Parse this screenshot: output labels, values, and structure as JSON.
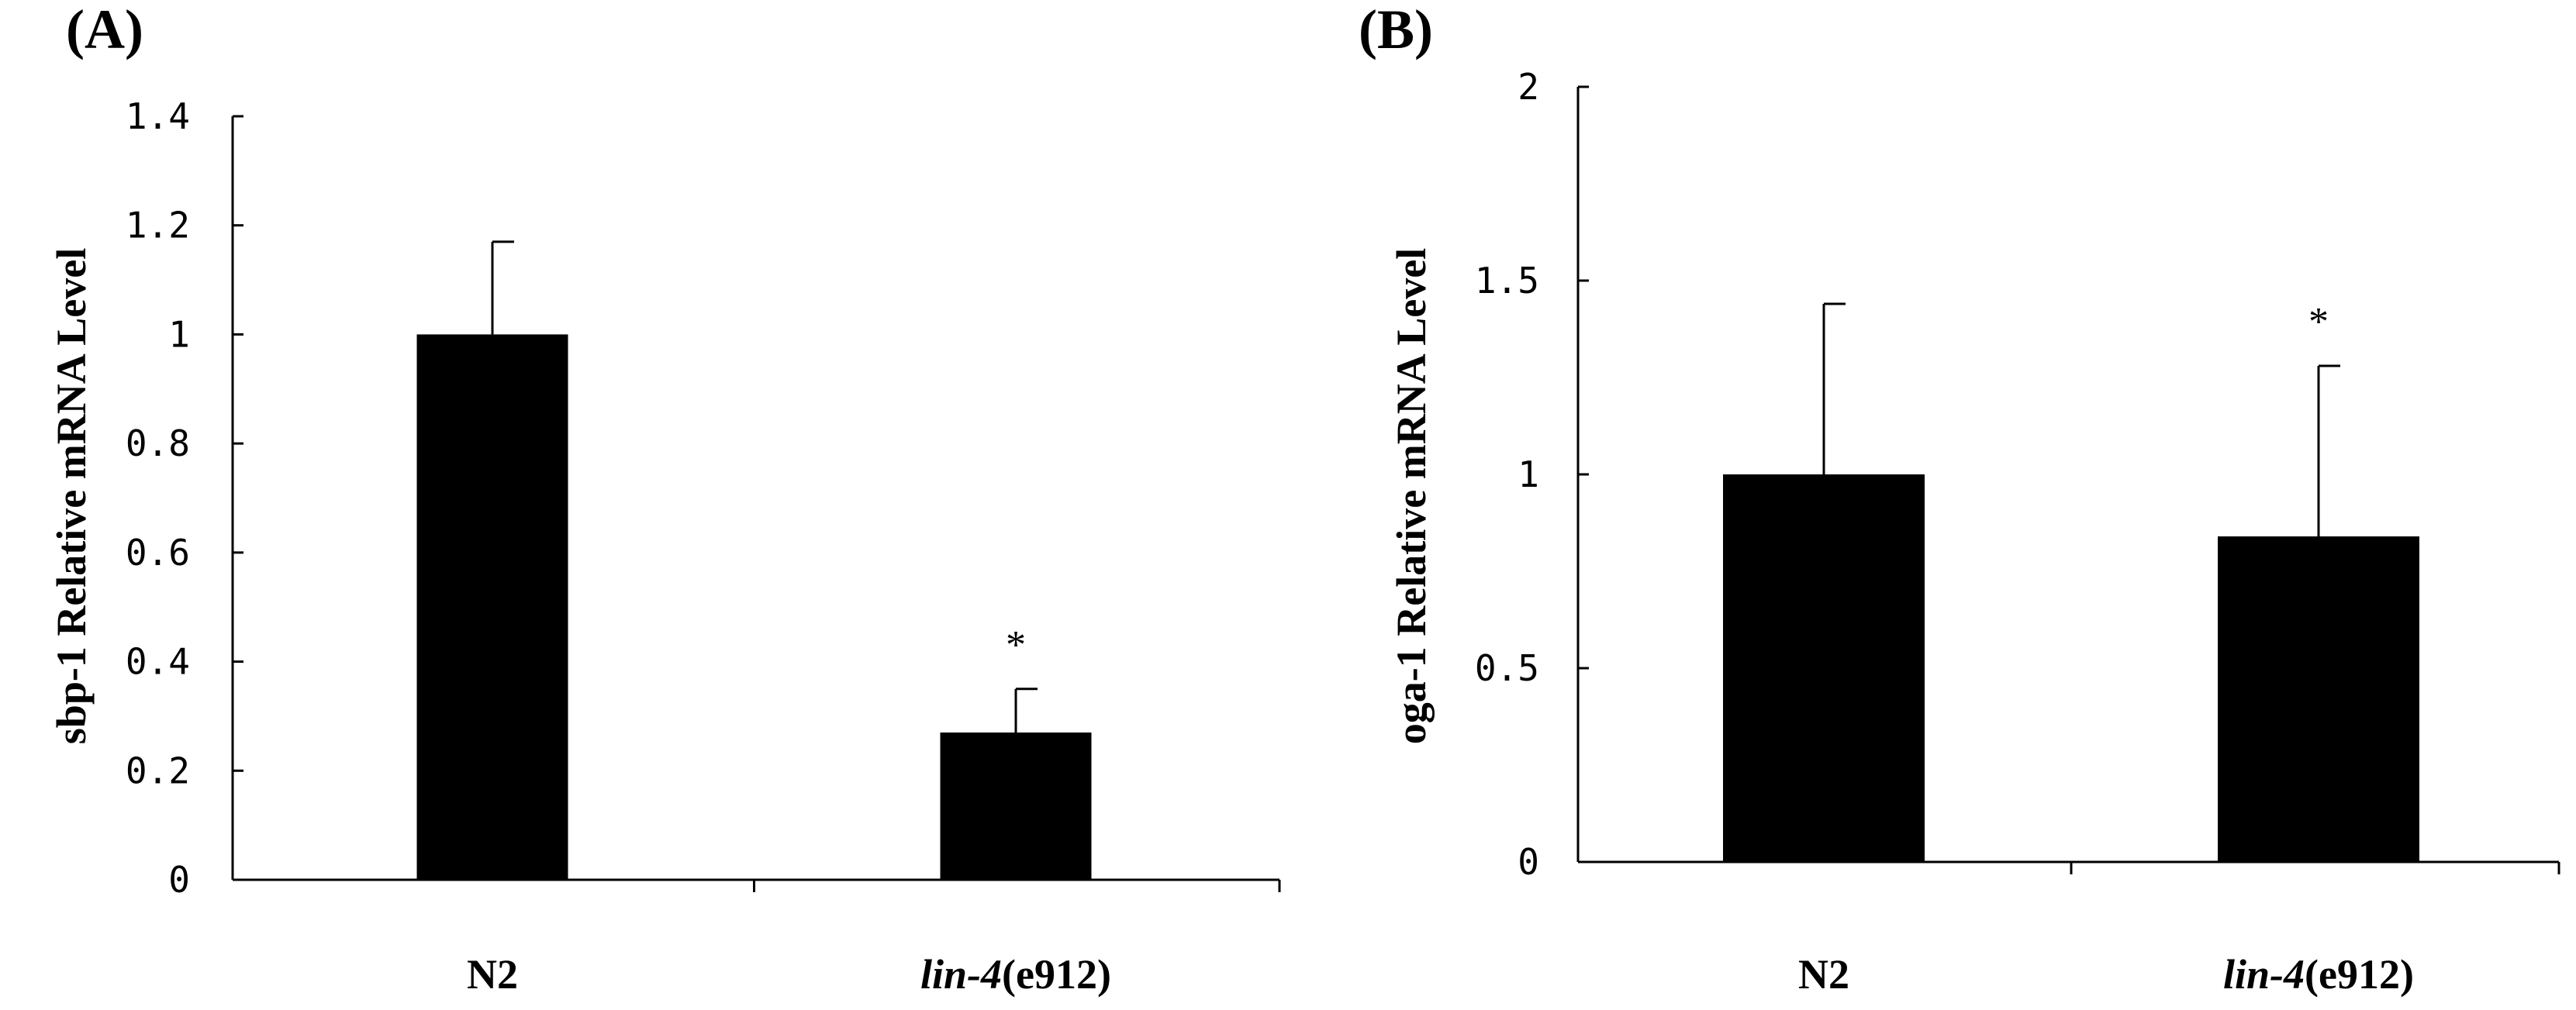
{
  "chart_data": [
    {
      "type": "bar",
      "panel_label": "(A)",
      "title": "",
      "xlabel": "",
      "ylabel": "sbp-1 Relative mRNA Level",
      "ylim": [
        0,
        1.4
      ],
      "yticks": [
        0,
        0.2,
        0.4,
        0.6,
        0.8,
        1,
        1.2,
        1.4
      ],
      "ytick_labels": [
        "0",
        "0.2",
        "0.4",
        "0.6",
        "0.8",
        "1",
        "1.2",
        "1.4"
      ],
      "categories": [
        {
          "italic": "",
          "normal": "N2"
        },
        {
          "italic": "lin-4",
          "normal": "(e912)"
        }
      ],
      "values": [
        1.0,
        0.27
      ],
      "error_upper": [
        0.17,
        0.08
      ],
      "significance": [
        "",
        "*"
      ],
      "bar_color": "#000000",
      "grid": false,
      "legend": false
    },
    {
      "type": "bar",
      "panel_label": "(B)",
      "title": "",
      "xlabel": "",
      "ylabel": "oga-1 Relative mRNA Level",
      "ylim": [
        0,
        2
      ],
      "yticks": [
        0,
        0.5,
        1,
        1.5,
        2
      ],
      "ytick_labels": [
        "0",
        "0.5",
        "1",
        "1.5",
        "2"
      ],
      "categories": [
        {
          "italic": "",
          "normal": "N2"
        },
        {
          "italic": "lin-4",
          "normal": "(e912)"
        }
      ],
      "values": [
        1.0,
        0.84
      ],
      "error_upper": [
        0.44,
        0.44
      ],
      "significance": [
        "",
        "*"
      ],
      "bar_color": "#000000",
      "grid": false,
      "legend": false
    }
  ]
}
